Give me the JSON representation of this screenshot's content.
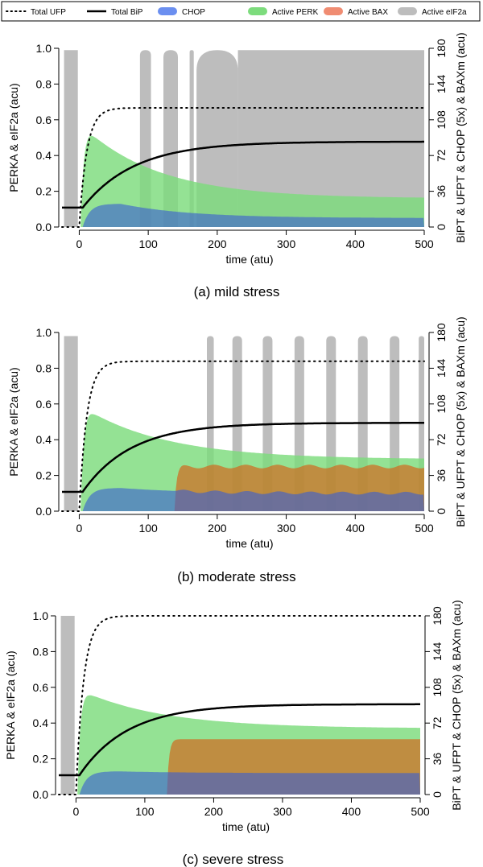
{
  "chart_data": {
    "legend": {
      "placement": "top",
      "entries": [
        {
          "name": "Total UFP",
          "kind": "dotted-line",
          "color": "#000000"
        },
        {
          "name": "Total BiP",
          "kind": "solid-line",
          "color": "#000000"
        },
        {
          "name": "CHOP",
          "kind": "fill",
          "color": "#6b8ff0"
        },
        {
          "name": "Active PERK",
          "kind": "fill",
          "color": "#7ddc7d"
        },
        {
          "name": "Active BAX",
          "kind": "fill",
          "color": "#f08c72"
        },
        {
          "name": "Active eIF2a",
          "kind": "fill",
          "color": "#bdbdbd"
        }
      ]
    },
    "colors": {
      "eif2a": "#bdbdbd",
      "perk": "#7ddc7d",
      "bax": "#d2691e",
      "chop": "#3a5fd0"
    },
    "panels": [
      {
        "type": "area",
        "caption": "(a) mild stress",
        "xlabel": "time (atu)",
        "ylabel_left": "PERKA & eIF2a (acu)",
        "ylabel_right": "BiPT & UFPT & CHOP (5x) & BAXm (acu)",
        "xlim": [
          -25,
          500
        ],
        "xticks": [
          0,
          100,
          200,
          300,
          400,
          500
        ],
        "ylim_left": [
          0,
          1
        ],
        "yticks_left": [
          "0.0",
          "0.2",
          "0.4",
          "0.6",
          "0.8",
          "1.0"
        ],
        "ylim_right": [
          0,
          180
        ],
        "yticks_right": [
          0,
          36,
          72,
          108,
          144,
          180
        ],
        "params": {
          "ufp_peak": 120,
          "ufp_tau": 11,
          "bip_base": 19.5,
          "bip_final": 86,
          "bip_tau": 75,
          "perk_peak": 0.53,
          "perk_final": 0.16,
          "perk_decay_tau": 110,
          "chop_peak": 0.13,
          "chop_final": 0.05,
          "chop_start": 5,
          "chop_end": 500,
          "bax_level": 0,
          "bax_start": 0,
          "eif2a_level": 0.99,
          "eif2a_windows": [
            [
              -22,
              -2
            ],
            [
              88,
              104
            ],
            [
              122,
              143
            ],
            [
              160,
              166
            ],
            [
              170,
              230
            ],
            [
              230,
              500
            ]
          ]
        }
      },
      {
        "type": "area",
        "caption": "(b) moderate stress",
        "xlabel": "time (atu)",
        "ylabel_left": "PERKA & eIF2a (acu)",
        "ylabel_right": "BiPT & UFPT & CHOP (5x) & BAXm (acu)",
        "xlim": [
          -25,
          500
        ],
        "xticks": [
          0,
          100,
          200,
          300,
          400,
          500
        ],
        "ylim_left": [
          0,
          1
        ],
        "yticks_left": [
          "0.0",
          "0.2",
          "0.4",
          "0.6",
          "0.8",
          "1.0"
        ],
        "ylim_right": [
          0,
          180
        ],
        "yticks_right": [
          0,
          36,
          72,
          108,
          144,
          180
        ],
        "params": {
          "ufp_peak": 151,
          "ufp_tau": 11,
          "bip_base": 19.5,
          "bip_final": 89,
          "bip_tau": 70,
          "perk_peak": 0.56,
          "perk_final": 0.29,
          "perk_decay_tau": 120,
          "chop_peak": 0.13,
          "chop_final": 0.1,
          "chop_start": 5,
          "chop_end": 500,
          "bax_level": 0.25,
          "bax_start": 138,
          "eif2a_level": 0.98,
          "eif2a_windows": [
            [
              -22,
              -2
            ],
            [
              185,
              195
            ],
            [
              222,
              236
            ],
            [
              266,
              280
            ],
            [
              312,
              326
            ],
            [
              358,
              372
            ],
            [
              404,
              418
            ],
            [
              450,
              464
            ],
            [
              492,
              500
            ]
          ]
        }
      },
      {
        "type": "area",
        "caption": "(c) severe stress",
        "xlabel": "time (atu)",
        "ylabel_left": "PERKA & eIF2a (acu)",
        "ylabel_right": "BiPT & UFPT & CHOP (5x) & BAXm (acu)",
        "xlim": [
          -25,
          500
        ],
        "xticks": [
          0,
          100,
          200,
          300,
          400,
          500
        ],
        "ylim_left": [
          0,
          1
        ],
        "yticks_left": [
          "0.0",
          "0.2",
          "0.4",
          "0.6",
          "0.8",
          "1.0"
        ],
        "ylim_right": [
          0,
          180
        ],
        "yticks_right": [
          0,
          36,
          72,
          108,
          144,
          180
        ],
        "params": {
          "ufp_peak": 180,
          "ufp_tau": 11,
          "bip_base": 19.5,
          "bip_final": 91,
          "bip_tau": 70,
          "perk_peak": 0.57,
          "perk_final": 0.37,
          "perk_decay_tau": 120,
          "chop_peak": 0.13,
          "chop_final": 0.12,
          "chop_start": 5,
          "chop_end": 500,
          "bax_level": 0.31,
          "bax_start": 132,
          "eif2a_level": 1.0,
          "eif2a_windows": [
            [
              -22,
              -2
            ]
          ]
        }
      }
    ]
  }
}
